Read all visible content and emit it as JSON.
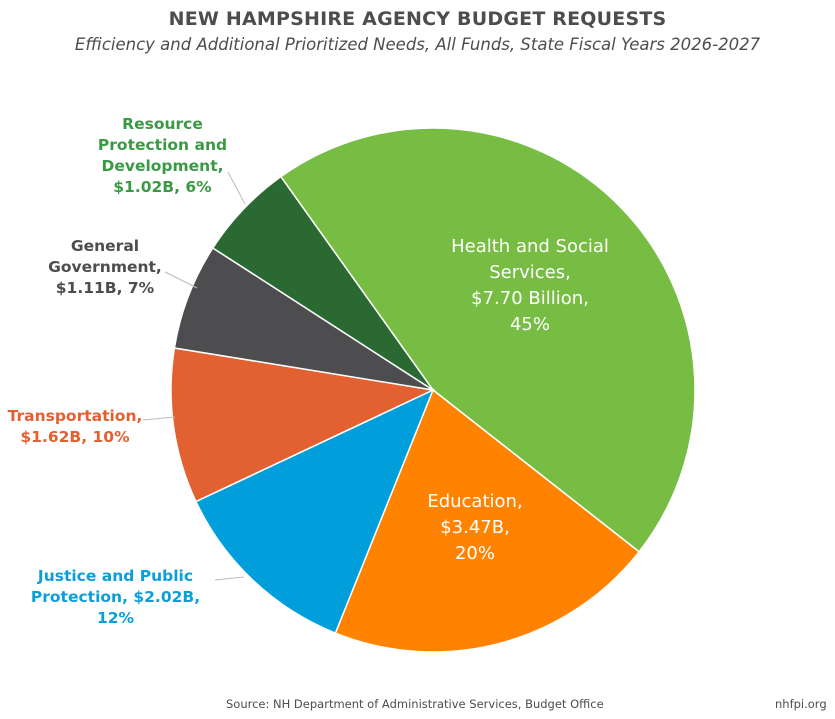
{
  "chart_data": {
    "type": "pie",
    "title": "NEW HAMPSHIRE AGENCY BUDGET REQUESTS",
    "subtitle": "Efficiency and Additional Prioritized Needs, All Funds, State Fiscal Years 2026-2027",
    "unit": "Billions of dollars",
    "slices": [
      {
        "name": "Health and Social Services",
        "value": 7.7,
        "percent": 45,
        "color": "#77bc43",
        "label_lines": [
          "Health and Social",
          "Services,",
          "$7.70 Billion,",
          "45%"
        ],
        "label_color": "#ffffff"
      },
      {
        "name": "Education",
        "value": 3.47,
        "percent": 20,
        "color": "#ff8300",
        "label_lines": [
          "Education,",
          "$3.47B,",
          "20%"
        ],
        "label_color": "#ffffff"
      },
      {
        "name": "Justice and Public Protection",
        "value": 2.02,
        "percent": 12,
        "color": "#009fdc",
        "label_lines": [
          "Justice and Public",
          "Protection, $2.02B,",
          "12%"
        ],
        "label_color": "#0a9fdb"
      },
      {
        "name": "Transportation",
        "value": 1.62,
        "percent": 10,
        "color": "#e36131",
        "label_lines": [
          "Transportation,",
          "$1.62B, 10%"
        ],
        "label_color": "#e36131"
      },
      {
        "name": "General Government",
        "value": 1.11,
        "percent": 7,
        "color": "#4d4d4f",
        "label_lines": [
          "General",
          "Government,",
          "$1.11B, 7%"
        ],
        "label_color": "#4d4d4f"
      },
      {
        "name": "Resource Protection and Development",
        "value": 1.02,
        "percent": 6,
        "color": "#2a6a32",
        "label_lines": [
          "Resource",
          "Protection and",
          "Development,",
          "$1.02B, 6%"
        ],
        "label_color": "#3a9a44"
      }
    ]
  },
  "footer": {
    "source": "Source: NH Department of Administrative Services, Budget Office",
    "site": "nhfpi.org"
  }
}
